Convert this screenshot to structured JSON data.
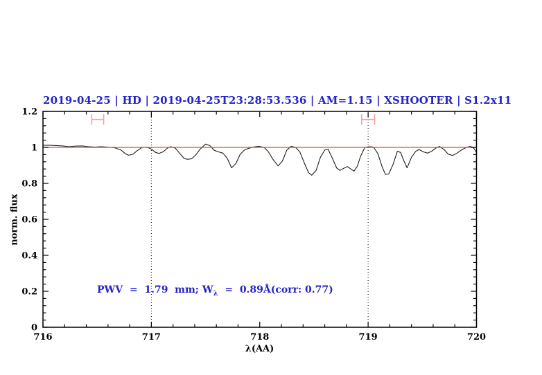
{
  "chart_data": {
    "type": "line",
    "title": "2019-04-25 | HD | 2019-04-25T23:28:53.536 | AM=1.15 | XSHOOTER | S1.2x11",
    "xlabel": "λ(AA)",
    "ylabel": "norm. flux",
    "xlim": [
      716,
      720
    ],
    "ylim": [
      0,
      1.2
    ],
    "xticks": [
      716,
      717,
      718,
      719,
      720
    ],
    "xtick_labels": [
      "716",
      "717",
      "718",
      "719",
      "720"
    ],
    "yticks": [
      0,
      0.2,
      0.4,
      0.6,
      0.8,
      1.0,
      1.2
    ],
    "ytick_labels": [
      "0",
      "0.2",
      "0.4",
      "0.6",
      "0.8",
      "1",
      "1.2"
    ],
    "x_minor_step": 0.2,
    "y_minor_step": 0.04,
    "grid": "off",
    "legend": "none",
    "vlines": {
      "style": "dotted",
      "color": "#000000",
      "x": [
        717,
        719
      ]
    },
    "reference_line": {
      "y": 1.0,
      "x_min": 716,
      "x_max": 720
    },
    "range_markers": [
      {
        "x_min": 716.45,
        "x_max": 716.56,
        "y": 1.155,
        "cap_half_height": 0.029
      },
      {
        "x_min": 718.94,
        "x_max": 719.06,
        "y": 1.155,
        "cap_half_height": 0.029
      }
    ],
    "annotation": {
      "part1": "PWV  =  1.79  mm; W",
      "sub": "λ",
      "part2": "  =  0.89Å(corr: 0.77)"
    },
    "colors": {
      "text_blue": "#2323cb",
      "spectrum_black": "#1c1c1c",
      "reference_red": "#d94a4a",
      "marker_pink": "#f2a2a2",
      "axis_black": "#000000"
    },
    "series": [
      {
        "name": "normalized telluric spectrum",
        "color": "#1c1c1c",
        "points": [
          [
            716.0,
            1.012
          ],
          [
            716.06,
            1.012
          ],
          [
            716.12,
            1.01
          ],
          [
            716.18,
            1.008
          ],
          [
            716.24,
            1.004
          ],
          [
            716.3,
            1.007
          ],
          [
            716.36,
            1.008
          ],
          [
            716.42,
            1.004
          ],
          [
            716.48,
            1.002
          ],
          [
            716.54,
            1.004
          ],
          [
            716.6,
            1.001
          ],
          [
            716.66,
            0.998
          ],
          [
            716.72,
            0.985
          ],
          [
            716.76,
            0.965
          ],
          [
            716.79,
            0.956
          ],
          [
            716.83,
            0.962
          ],
          [
            716.87,
            0.982
          ],
          [
            716.91,
            0.998
          ],
          [
            716.96,
            1.002
          ],
          [
            717.0,
            0.99
          ],
          [
            717.04,
            0.972
          ],
          [
            717.07,
            0.966
          ],
          [
            717.11,
            0.976
          ],
          [
            717.15,
            0.996
          ],
          [
            717.18,
            1.004
          ],
          [
            717.22,
            0.996
          ],
          [
            717.26,
            0.968
          ],
          [
            717.3,
            0.94
          ],
          [
            717.33,
            0.934
          ],
          [
            717.37,
            0.936
          ],
          [
            717.41,
            0.958
          ],
          [
            717.45,
            0.99
          ],
          [
            717.5,
            1.018
          ],
          [
            717.54,
            1.01
          ],
          [
            717.58,
            0.984
          ],
          [
            717.62,
            0.975
          ],
          [
            717.66,
            0.968
          ],
          [
            717.7,
            0.94
          ],
          [
            717.74,
            0.886
          ],
          [
            717.78,
            0.91
          ],
          [
            717.82,
            0.962
          ],
          [
            717.86,
            0.986
          ],
          [
            717.9,
            0.995
          ],
          [
            717.94,
            1.002
          ],
          [
            717.99,
            1.006
          ],
          [
            718.04,
            1.0
          ],
          [
            718.08,
            0.975
          ],
          [
            718.12,
            0.935
          ],
          [
            718.17,
            0.897
          ],
          [
            718.21,
            0.925
          ],
          [
            718.25,
            0.985
          ],
          [
            718.29,
            1.006
          ],
          [
            718.33,
            1.0
          ],
          [
            718.37,
            0.975
          ],
          [
            718.41,
            0.915
          ],
          [
            718.45,
            0.86
          ],
          [
            718.48,
            0.845
          ],
          [
            718.52,
            0.872
          ],
          [
            718.56,
            0.945
          ],
          [
            718.6,
            0.985
          ],
          [
            718.63,
            0.99
          ],
          [
            718.67,
            0.94
          ],
          [
            718.71,
            0.885
          ],
          [
            718.74,
            0.872
          ],
          [
            718.78,
            0.885
          ],
          [
            718.81,
            0.893
          ],
          [
            718.84,
            0.88
          ],
          [
            718.87,
            0.868
          ],
          [
            718.9,
            0.895
          ],
          [
            718.93,
            0.95
          ],
          [
            718.97,
            1.0
          ],
          [
            719.01,
            1.004
          ],
          [
            719.05,
            1.002
          ],
          [
            719.09,
            0.965
          ],
          [
            719.13,
            0.89
          ],
          [
            719.16,
            0.85
          ],
          [
            719.19,
            0.852
          ],
          [
            719.23,
            0.905
          ],
          [
            719.27,
            0.978
          ],
          [
            719.3,
            0.972
          ],
          [
            719.33,
            0.925
          ],
          [
            719.36,
            0.886
          ],
          [
            719.4,
            0.945
          ],
          [
            719.44,
            0.978
          ],
          [
            719.47,
            0.988
          ],
          [
            719.51,
            0.975
          ],
          [
            719.55,
            0.968
          ],
          [
            719.59,
            0.98
          ],
          [
            719.63,
            0.998
          ],
          [
            719.66,
            1.005
          ],
          [
            719.7,
            0.988
          ],
          [
            719.74,
            0.962
          ],
          [
            719.78,
            0.955
          ],
          [
            719.82,
            0.968
          ],
          [
            719.86,
            0.985
          ],
          [
            719.9,
            0.998
          ],
          [
            719.94,
            1.005
          ],
          [
            719.97,
            1.0
          ],
          [
            720.0,
            0.972
          ]
        ]
      }
    ]
  }
}
